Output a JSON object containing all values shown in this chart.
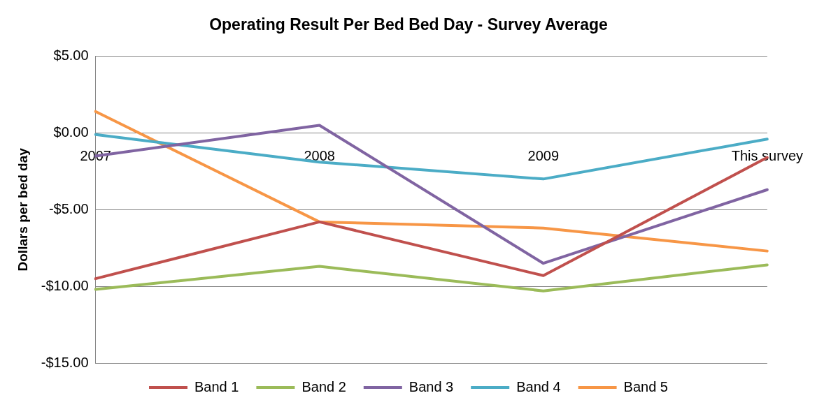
{
  "chart_data": {
    "type": "line",
    "title": "Operating Result Per Bed Bed Day - Survey Average",
    "ylabel": "Dollars per bed day",
    "categories": [
      "2007",
      "2008",
      "2009",
      "This survey"
    ],
    "series": [
      {
        "name": "Band 1",
        "color": "#c0504d",
        "values": [
          -9.5,
          -5.8,
          -9.3,
          -1.6
        ]
      },
      {
        "name": "Band 2",
        "color": "#9bbb59",
        "values": [
          -10.2,
          -8.7,
          -10.3,
          -8.6
        ]
      },
      {
        "name": "Band 3",
        "color": "#8064a2",
        "values": [
          -1.5,
          0.5,
          -8.5,
          -3.7
        ]
      },
      {
        "name": "Band 4",
        "color": "#4bacc6",
        "values": [
          -0.1,
          -1.9,
          -3.0,
          -0.4
        ]
      },
      {
        "name": "Band 5",
        "color": "#f79646",
        "values": [
          1.4,
          -5.8,
          -6.2,
          -7.7
        ]
      }
    ],
    "ylim": [
      -15,
      5
    ],
    "yticks": [
      {
        "value": -15,
        "label": "-$15.00"
      },
      {
        "value": -10,
        "label": "-$10.00"
      },
      {
        "value": -5,
        "label": "-$5.00"
      },
      {
        "value": 0,
        "label": "$0.00"
      },
      {
        "value": 5,
        "label": "$5.00"
      }
    ],
    "grid": "y",
    "legend": "bottom",
    "marker": "none",
    "line_style": "solid"
  }
}
